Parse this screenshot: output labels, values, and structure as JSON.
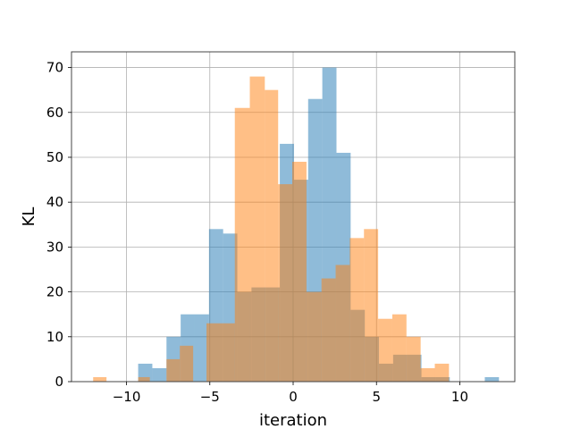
{
  "chart_data": {
    "type": "bar",
    "title": "",
    "xlabel": "iteration",
    "ylabel": "KL",
    "xlim": [
      -13.3,
      13.3
    ],
    "ylim": [
      0,
      73.5
    ],
    "xticks": [
      -10,
      -5,
      0,
      5,
      10
    ],
    "xtick_labels": [
      "−10",
      "−5",
      "0",
      "5",
      "10"
    ],
    "yticks": [
      0,
      10,
      20,
      30,
      40,
      50,
      60,
      70
    ],
    "ytick_labels": [
      "0",
      "10",
      "20",
      "30",
      "40",
      "50",
      "60",
      "70"
    ],
    "grid": true,
    "legend": "none",
    "alpha": 0.5,
    "series": [
      {
        "color": "#1f77b4",
        "bins": [
          {
            "x0": -9.3,
            "x1": -8.45,
            "y": 4
          },
          {
            "x0": -8.45,
            "x1": -7.6,
            "y": 3
          },
          {
            "x0": -7.6,
            "x1": -6.75,
            "y": 10
          },
          {
            "x0": -6.75,
            "x1": -5.9,
            "y": 15
          },
          {
            "x0": -5.9,
            "x1": -5.05,
            "y": 15
          },
          {
            "x0": -5.05,
            "x1": -4.2,
            "y": 34
          },
          {
            "x0": -4.2,
            "x1": -3.35,
            "y": 33
          },
          {
            "x0": -3.35,
            "x1": -2.5,
            "y": 20
          },
          {
            "x0": -2.5,
            "x1": -1.65,
            "y": 21
          },
          {
            "x0": -1.65,
            "x1": -0.8,
            "y": 21
          },
          {
            "x0": -0.8,
            "x1": 0.05,
            "y": 53
          },
          {
            "x0": 0.05,
            "x1": 0.9,
            "y": 45
          },
          {
            "x0": 0.9,
            "x1": 1.75,
            "y": 63
          },
          {
            "x0": 1.75,
            "x1": 2.6,
            "y": 70
          },
          {
            "x0": 2.6,
            "x1": 3.45,
            "y": 51
          },
          {
            "x0": 3.45,
            "x1": 4.3,
            "y": 16
          },
          {
            "x0": 4.3,
            "x1": 5.15,
            "y": 10
          },
          {
            "x0": 5.15,
            "x1": 6.0,
            "y": 4
          },
          {
            "x0": 6.0,
            "x1": 6.85,
            "y": 6
          },
          {
            "x0": 6.85,
            "x1": 7.7,
            "y": 6
          },
          {
            "x0": 7.7,
            "x1": 8.55,
            "y": 1
          },
          {
            "x0": 8.55,
            "x1": 9.4,
            "y": 1
          },
          {
            "x0": 11.5,
            "x1": 12.35,
            "y": 1
          }
        ]
      },
      {
        "color": "#ff7f0e",
        "bins": [
          {
            "x0": -12.0,
            "x1": -11.2,
            "y": 1
          },
          {
            "x0": -9.3,
            "x1": -8.6,
            "y": 1
          },
          {
            "x0": -7.6,
            "x1": -6.8,
            "y": 5
          },
          {
            "x0": -6.8,
            "x1": -6.0,
            "y": 8
          },
          {
            "x0": -5.2,
            "x1": -3.5,
            "y": 13
          },
          {
            "x0": -3.5,
            "x1": -2.6,
            "y": 61
          },
          {
            "x0": -2.6,
            "x1": -1.7,
            "y": 68
          },
          {
            "x0": -1.7,
            "x1": -0.9,
            "y": 65
          },
          {
            "x0": -0.9,
            "x1": -0.05,
            "y": 44
          },
          {
            "x0": -0.05,
            "x1": 0.8,
            "y": 49
          },
          {
            "x0": 0.8,
            "x1": 1.7,
            "y": 20
          },
          {
            "x0": 1.7,
            "x1": 2.55,
            "y": 23
          },
          {
            "x0": 2.55,
            "x1": 3.4,
            "y": 26
          },
          {
            "x0": 3.4,
            "x1": 4.25,
            "y": 32
          },
          {
            "x0": 4.25,
            "x1": 5.1,
            "y": 34
          },
          {
            "x0": 5.1,
            "x1": 5.95,
            "y": 14
          },
          {
            "x0": 5.95,
            "x1": 6.8,
            "y": 15
          },
          {
            "x0": 6.8,
            "x1": 7.65,
            "y": 10
          },
          {
            "x0": 7.65,
            "x1": 8.5,
            "y": 3
          },
          {
            "x0": 8.5,
            "x1": 9.35,
            "y": 4
          }
        ]
      }
    ]
  }
}
